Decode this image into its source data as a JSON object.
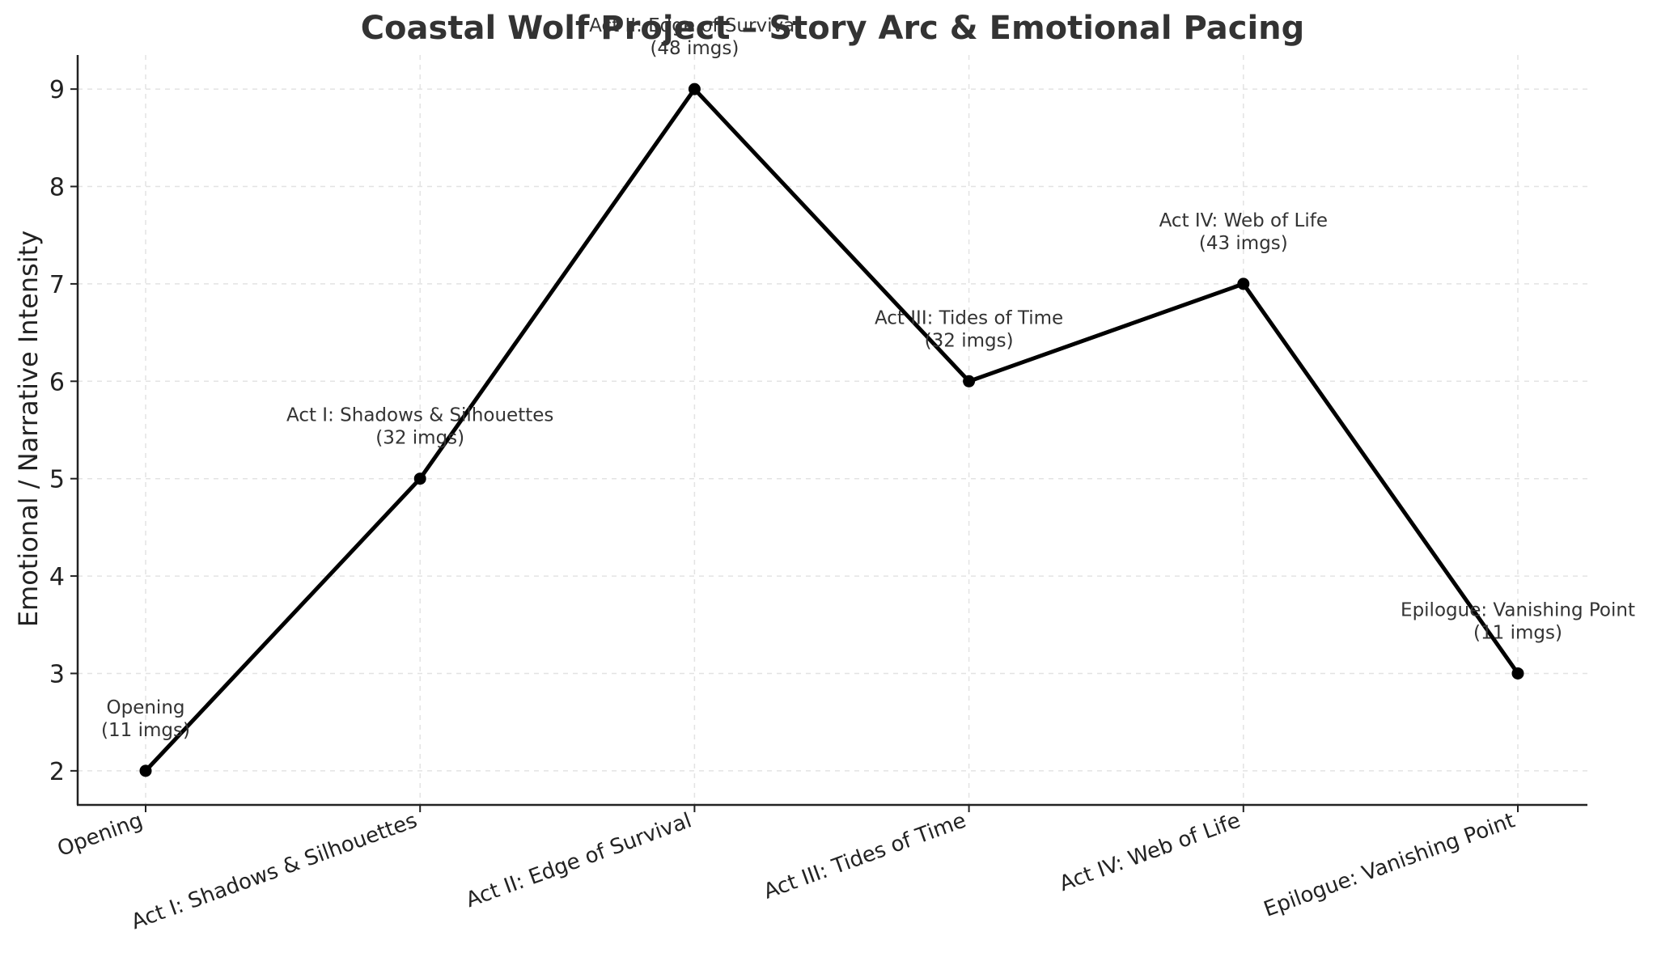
{
  "chart_data": {
    "type": "line",
    "title": "Coastal Wolf Project – Story Arc & Emotional Pacing",
    "xlabel": "",
    "ylabel": "Emotional / Narrative Intensity",
    "categories": [
      "Opening",
      "Act I: Shadows & Silhouettes",
      "Act II: Edge of Survival",
      "Act III: Tides of Time",
      "Act IV: Web of Life",
      "Epilogue: Vanishing Point"
    ],
    "values": [
      2,
      5,
      9,
      6,
      7,
      3
    ],
    "image_counts": [
      "(11 imgs)",
      "(32 imgs)",
      "(48 imgs)",
      "(32 imgs)",
      "(43 imgs)",
      "(11 imgs)"
    ],
    "yticks": [
      2,
      3,
      4,
      5,
      6,
      7,
      8,
      9
    ],
    "ylim": [
      1.65,
      9.35
    ],
    "grid": true,
    "legend": "none",
    "line_color": "#000000",
    "marker_color": "#000000"
  }
}
